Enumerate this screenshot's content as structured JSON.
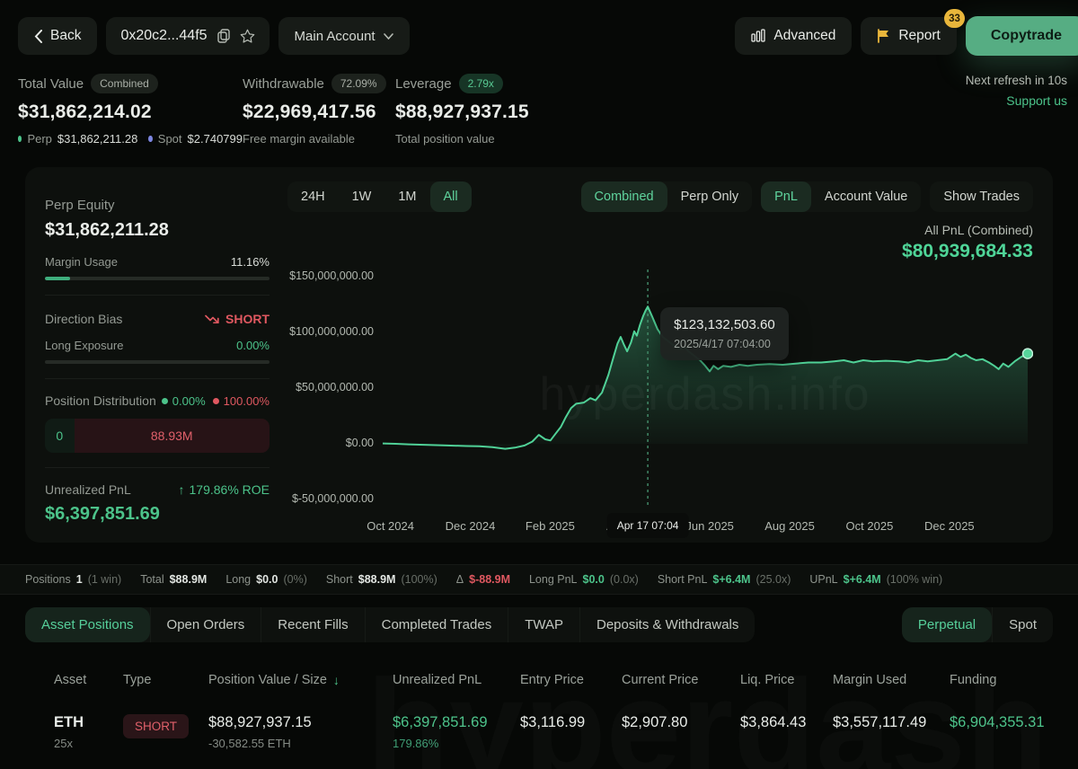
{
  "topbar": {
    "back_label": "Back",
    "address": "0x20c2...44f5",
    "account_selector": "Main Account",
    "advanced_label": "Advanced",
    "report_label": "Report",
    "report_badge": "33",
    "copytrade_label": "Copytrade"
  },
  "stats": {
    "total_value": {
      "label": "Total Value",
      "badge": "Combined",
      "value": "$31,862,214.02",
      "perp_label": "Perp",
      "perp_value": "$31,862,211.28",
      "spot_label": "Spot",
      "spot_value": "$2.740799"
    },
    "withdrawable": {
      "label": "Withdrawable",
      "badge": "72.09%",
      "value": "$22,969,417.56",
      "sub": "Free margin available"
    },
    "leverage": {
      "label": "Leverage",
      "badge": "2.79x",
      "value": "$88,927,937.15",
      "sub": "Total position value"
    },
    "refresh_text": "Next refresh in 10s",
    "support_link": "Support us"
  },
  "panel": {
    "perp_equity_label": "Perp Equity",
    "perp_equity_value": "$31,862,211.28",
    "margin_usage_label": "Margin Usage",
    "margin_usage_value": "11.16%",
    "margin_usage_pct": 11.16,
    "direction_bias_label": "Direction Bias",
    "direction_bias_value": "SHORT",
    "long_exposure_label": "Long Exposure",
    "long_exposure_value": "0.00%",
    "long_exposure_pct": 0,
    "position_distribution_label": "Position Distribution",
    "dist_long_pct": "0.00%",
    "dist_short_pct": "100.00%",
    "dist_long_value": "0",
    "dist_short_value": "88.93M",
    "unrealized_pnl_label": "Unrealized PnL",
    "roe_value": "179.86% ROE",
    "unrealized_pnl_value": "$6,397,851.69"
  },
  "chart_header": {
    "ranges": [
      "24H",
      "1W",
      "1M",
      "All"
    ],
    "active_range": "All",
    "modes": [
      "Combined",
      "Perp Only"
    ],
    "active_mode": "Combined",
    "views": [
      "PnL",
      "Account Value"
    ],
    "active_view": "PnL",
    "trades_toggle": "Show Trades",
    "summary_label": "All PnL (Combined)",
    "summary_value": "$80,939,684.33"
  },
  "chart_data": {
    "type": "area",
    "title": "All PnL (Combined)",
    "unit": "USD",
    "y_ticks": [
      "$150,000,000.00",
      "$100,000,000.00",
      "$50,000,000.00",
      "$0.00",
      "$-50,000,000.00"
    ],
    "y_tick_values_m": [
      150,
      100,
      50,
      0,
      -50
    ],
    "x_ticks": [
      "Oct 2024",
      "Dec 2024",
      "Feb 2025",
      "Apr 2025",
      "Jun 2025",
      "Aug 2025",
      "Oct 2025",
      "Dec 2025"
    ],
    "points": [
      [
        0,
        0.3
      ],
      [
        0.02,
        0
      ],
      [
        0.04,
        -0.5
      ],
      [
        0.07,
        -1
      ],
      [
        0.1,
        -1.5
      ],
      [
        0.13,
        -2
      ],
      [
        0.15,
        -2.2
      ],
      [
        0.17,
        -3
      ],
      [
        0.19,
        -4.5
      ],
      [
        0.205,
        -3.5
      ],
      [
        0.22,
        -1.5
      ],
      [
        0.232,
        2
      ],
      [
        0.242,
        8
      ],
      [
        0.252,
        4
      ],
      [
        0.26,
        3
      ],
      [
        0.268,
        9
      ],
      [
        0.276,
        15
      ],
      [
        0.284,
        24
      ],
      [
        0.292,
        32
      ],
      [
        0.3,
        36
      ],
      [
        0.312,
        37
      ],
      [
        0.322,
        41
      ],
      [
        0.33,
        39
      ],
      [
        0.34,
        46
      ],
      [
        0.35,
        62
      ],
      [
        0.358,
        78
      ],
      [
        0.364,
        90
      ],
      [
        0.369,
        96
      ],
      [
        0.374,
        89
      ],
      [
        0.379,
        83
      ],
      [
        0.385,
        91
      ],
      [
        0.39,
        101
      ],
      [
        0.394,
        97
      ],
      [
        0.399,
        107
      ],
      [
        0.404,
        115
      ],
      [
        0.408,
        120
      ],
      [
        0.411,
        123.13
      ],
      [
        0.418,
        114
      ],
      [
        0.426,
        103
      ],
      [
        0.434,
        96
      ],
      [
        0.443,
        92
      ],
      [
        0.452,
        88
      ],
      [
        0.462,
        85
      ],
      [
        0.468,
        87
      ],
      [
        0.474,
        83
      ],
      [
        0.483,
        79
      ],
      [
        0.492,
        75
      ],
      [
        0.5,
        70
      ],
      [
        0.507,
        65
      ],
      [
        0.513,
        70
      ],
      [
        0.52,
        67
      ],
      [
        0.528,
        70
      ],
      [
        0.54,
        69
      ],
      [
        0.553,
        71
      ],
      [
        0.566,
        70
      ],
      [
        0.58,
        71
      ],
      [
        0.6,
        71.5
      ],
      [
        0.62,
        71
      ],
      [
        0.64,
        72
      ],
      [
        0.66,
        73
      ],
      [
        0.68,
        73
      ],
      [
        0.7,
        74
      ],
      [
        0.715,
        75
      ],
      [
        0.73,
        73
      ],
      [
        0.745,
        75
      ],
      [
        0.76,
        74
      ],
      [
        0.78,
        74.5
      ],
      [
        0.8,
        74
      ],
      [
        0.815,
        73
      ],
      [
        0.83,
        75
      ],
      [
        0.845,
        74
      ],
      [
        0.86,
        75
      ],
      [
        0.875,
        76
      ],
      [
        0.888,
        81
      ],
      [
        0.896,
        78
      ],
      [
        0.904,
        80
      ],
      [
        0.912,
        77
      ],
      [
        0.92,
        75
      ],
      [
        0.93,
        76
      ],
      [
        0.94,
        73
      ],
      [
        0.948,
        70
      ],
      [
        0.955,
        67
      ],
      [
        0.962,
        72
      ],
      [
        0.97,
        69
      ],
      [
        0.98,
        74
      ],
      [
        0.99,
        78
      ],
      [
        1,
        80.94
      ]
    ],
    "marker": {
      "t": 0.411,
      "value_label": "$123,132,503.60",
      "date_label": "2025/4/17 07:04:00",
      "axis_badge": "Apr 17 07:04",
      "value": 123132503.6
    },
    "end_point": {
      "t": 1.0,
      "value_m": 80.94,
      "value": 80939684.33
    },
    "watermark": "hyperdash.info"
  },
  "summary_strip": {
    "items": [
      {
        "label": "Positions",
        "value": "1",
        "extra": "(1 win)",
        "color": "white"
      },
      {
        "label": "Total",
        "value": "$88.9M",
        "extra": "",
        "color": "white"
      },
      {
        "label": "Long",
        "value": "$0.0",
        "extra": "(0%)",
        "color": "white"
      },
      {
        "label": "Short",
        "value": "$88.9M",
        "extra": "(100%)",
        "color": "white"
      },
      {
        "label": "Δ",
        "value": "$-88.9M",
        "extra": "",
        "color": "red"
      },
      {
        "label": "Long PnL",
        "value": "$0.0",
        "extra": "(0.0x)",
        "color": "green"
      },
      {
        "label": "Short PnL",
        "value": "$+6.4M",
        "extra": "(25.0x)",
        "color": "green"
      },
      {
        "label": "UPnL",
        "value": "$+6.4M",
        "extra": "(100% win)",
        "color": "green"
      }
    ]
  },
  "section_tabs": {
    "left": [
      "Asset Positions",
      "Open Orders",
      "Recent Fills",
      "Completed Trades",
      "TWAP",
      "Deposits & Withdrawals"
    ],
    "active_left": "Asset Positions",
    "right": [
      "Perpetual",
      "Spot"
    ],
    "active_right": "Perpetual"
  },
  "positions_table": {
    "columns": [
      "Asset",
      "Type",
      "Position Value / Size",
      "Unrealized PnL",
      "Entry Price",
      "Current Price",
      "Liq. Price",
      "Margin Used",
      "Funding"
    ],
    "sorted_column": "Position Value / Size",
    "rows": [
      {
        "asset": "ETH",
        "leverage": "25x",
        "type": "SHORT",
        "position_value": "$88,927,937.15",
        "size": "-30,582.55 ETH",
        "unrealized_pnl": "$6,397,851.69",
        "roe": "179.86%",
        "entry_price": "$3,116.99",
        "current_price": "$2,907.80",
        "liq_price": "$3,864.43",
        "margin_used": "$3,557,117.49",
        "funding": "$6,904,355.31"
      }
    ]
  },
  "colors": {
    "accent_green": "#4cc38a",
    "bright_green": "#5bd39c",
    "red": "#df5860",
    "yellow": "#e9b63b",
    "copytrade_bg": "#56ad83"
  }
}
